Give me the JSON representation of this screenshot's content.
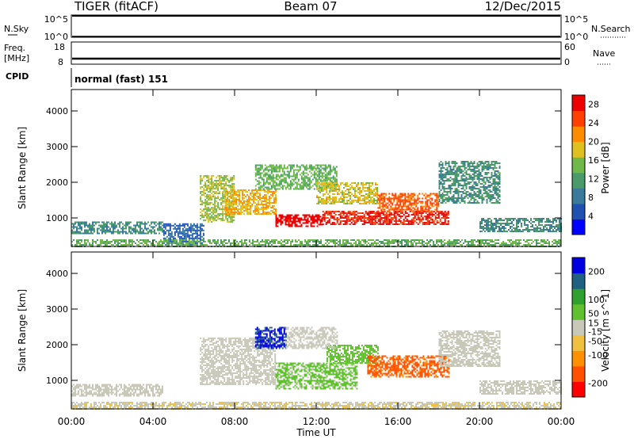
{
  "header": {
    "radar": "TIGER (fitACF)",
    "beam": "Beam 07",
    "date": "12/Dec/2015"
  },
  "panels": {
    "nsky": {
      "left_label": "N.Sky",
      "right_label": "N.Search",
      "y_ticks": [
        "10^5",
        "10^0"
      ],
      "y_ticks_right": [
        "10^5",
        "10^0"
      ]
    },
    "freq": {
      "left_label": "Freq.",
      "unit": "[MHz]",
      "right_label": "Nave",
      "y_ticks": [
        "18",
        "8"
      ],
      "y_ticks_right": [
        "60",
        "0"
      ]
    },
    "cpid": {
      "left_label": "CPID",
      "text": "normal (fast) 151"
    }
  },
  "colors": {
    "power": [
      "#0000ff",
      "#2050b0",
      "#3a7a9a",
      "#4a9a6a",
      "#70b84a",
      "#e0c020",
      "#ff8c00",
      "#ff4000",
      "#ee0000"
    ],
    "velocity": [
      "#ff0000",
      "#ff5000",
      "#ff9000",
      "#f0c040",
      "#c8c8b8",
      "#60c030",
      "#30a030",
      "#206080",
      "#0000e0"
    ]
  },
  "chart_data": [
    {
      "type": "heatmap",
      "title": "",
      "xlabel": "",
      "ylabel": "Slant Range [km]",
      "x_ticks": [
        "00:00",
        "04:00",
        "08:00",
        "12:00",
        "16:00",
        "20:00",
        "00:00"
      ],
      "y_ticks": [
        1000,
        2000,
        3000,
        4000
      ],
      "ylim": [
        200,
        4600
      ],
      "xlim_hours": [
        0,
        24
      ],
      "colorbar": {
        "label": "Power [dB]",
        "ticks": [
          4,
          8,
          12,
          16,
          20,
          24,
          28
        ],
        "range": [
          0,
          30
        ]
      },
      "regions": [
        {
          "t0": 0.0,
          "t1": 4.5,
          "r0": 550,
          "r1": 900,
          "level": 10
        },
        {
          "t0": 4.5,
          "t1": 6.5,
          "r0": 250,
          "r1": 850,
          "level": 6
        },
        {
          "t0": 6.3,
          "t1": 8.0,
          "r0": 900,
          "r1": 2200,
          "level": 16
        },
        {
          "t0": 7.5,
          "t1": 10.0,
          "r0": 1100,
          "r1": 1800,
          "level": 20
        },
        {
          "t0": 10.0,
          "t1": 12.3,
          "r0": 750,
          "r1": 1100,
          "level": 29
        },
        {
          "t0": 12.3,
          "t1": 18.5,
          "r0": 800,
          "r1": 1200,
          "level": 27
        },
        {
          "t0": 9.0,
          "t1": 13.0,
          "r0": 1800,
          "r1": 2500,
          "level": 14
        },
        {
          "t0": 12.0,
          "t1": 15.0,
          "r0": 1400,
          "r1": 2000,
          "level": 18
        },
        {
          "t0": 15.0,
          "t1": 18.0,
          "r0": 1200,
          "r1": 1700,
          "level": 24
        },
        {
          "t0": 18.0,
          "t1": 21.0,
          "r0": 1400,
          "r1": 2600,
          "level": 11
        },
        {
          "t0": 20.0,
          "t1": 24.0,
          "r0": 600,
          "r1": 1000,
          "level": 10
        },
        {
          "t0": 0.0,
          "t1": 24.0,
          "r0": 200,
          "r1": 400,
          "level": 14
        }
      ]
    },
    {
      "type": "heatmap",
      "title": "",
      "xlabel": "Time UT",
      "ylabel": "Slant Range [km]",
      "x_ticks": [
        "00:00",
        "04:00",
        "08:00",
        "12:00",
        "16:00",
        "20:00",
        "00:00"
      ],
      "y_ticks": [
        1000,
        2000,
        3000,
        4000
      ],
      "ylim": [
        200,
        4600
      ],
      "xlim_hours": [
        0,
        24
      ],
      "colorbar": {
        "label": "Velocity [m s^-1]",
        "ticks": [
          -200,
          -100,
          -50,
          -15,
          15,
          50,
          100,
          200
        ],
        "range": [
          -250,
          250
        ]
      },
      "regions": [
        {
          "t0": 0.0,
          "t1": 4.5,
          "r0": 550,
          "r1": 900,
          "level": 0
        },
        {
          "t0": 6.3,
          "t1": 10.0,
          "r0": 900,
          "r1": 2200,
          "level": 0
        },
        {
          "t0": 10.0,
          "t1": 14.0,
          "r0": 750,
          "r1": 1500,
          "level": 40
        },
        {
          "t0": 12.5,
          "t1": 15.0,
          "r0": 1500,
          "r1": 2000,
          "level": 60
        },
        {
          "t0": 14.5,
          "t1": 18.5,
          "r0": 1100,
          "r1": 1700,
          "level": -150
        },
        {
          "t0": 9.0,
          "t1": 10.5,
          "r0": 1900,
          "r1": 2500,
          "level": 200
        },
        {
          "t0": 10.5,
          "t1": 13.0,
          "r0": 1900,
          "r1": 2500,
          "level": 0
        },
        {
          "t0": 18.0,
          "t1": 21.0,
          "r0": 1400,
          "r1": 2400,
          "level": 0
        },
        {
          "t0": 20.0,
          "t1": 24.0,
          "r0": 600,
          "r1": 1000,
          "level": 0
        },
        {
          "t0": 0.0,
          "t1": 24.0,
          "r0": 200,
          "r1": 400,
          "level": -20
        }
      ]
    }
  ]
}
